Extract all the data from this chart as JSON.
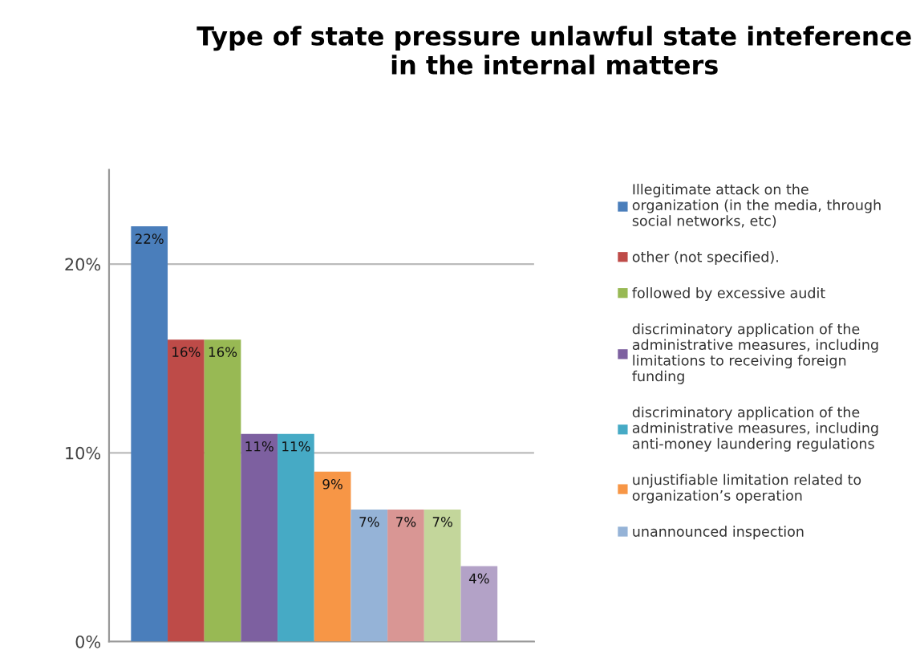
{
  "chart_data": {
    "type": "bar",
    "title": "Type of state pressure unlawful state inteference\nin the internal matters",
    "categories": [
      null
    ],
    "series": [
      {
        "name": "Illegitimate attack on the\norganization (in the media, through\nsocial networks, etc)",
        "color": "#4a7ebb",
        "values": [
          22
        ],
        "value_labels": [
          "22%"
        ]
      },
      {
        "name": "other (not specified).",
        "color": "#be4b48",
        "values": [
          16
        ],
        "value_labels": [
          "16%"
        ]
      },
      {
        "name": "followed by excessive audit",
        "color": "#98b954",
        "values": [
          16
        ],
        "value_labels": [
          "16%"
        ]
      },
      {
        "name": "discriminatory application of the\nadministrative measures, including\nlimitations to receiving foreign\nfunding",
        "color": "#7d60a0",
        "values": [
          11
        ],
        "value_labels": [
          "11%"
        ]
      },
      {
        "name": "discriminatory application of the\nadministrative measures, including\nanti-money laundering regulations",
        "color": "#46aac5",
        "values": [
          11
        ],
        "value_labels": [
          "11%"
        ]
      },
      {
        "name": "unjustifiable limitation related to\norganization’s operation",
        "color": "#f79646",
        "values": [
          9
        ],
        "value_labels": [
          "9%"
        ]
      },
      {
        "name": "unannounced inspection",
        "color": "#95b3d7",
        "values": [
          7
        ],
        "value_labels": [
          "7%"
        ]
      },
      {
        "color": "#d99694",
        "values": [
          7
        ],
        "value_labels": [
          "7%"
        ]
      },
      {
        "color": "#c3d69b",
        "values": [
          7
        ],
        "value_labels": [
          "7%"
        ]
      },
      {
        "color": "#b3a2c7",
        "values": [
          4
        ],
        "value_labels": [
          "4%"
        ]
      }
    ],
    "ylim": [
      0,
      25
    ],
    "yticks": [
      {
        "value": 0,
        "label": "0%"
      },
      {
        "value": 10,
        "label": "10%"
      },
      {
        "value": 20,
        "label": "20%"
      }
    ],
    "grid": "y",
    "legend": "right"
  }
}
